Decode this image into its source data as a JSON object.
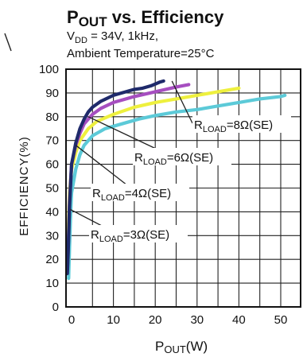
{
  "chart_data": {
    "type": "line",
    "title": {
      "main": "P",
      "sub": "OUT",
      "rest": " vs. Efficiency"
    },
    "subtitle": {
      "line1_v": "V",
      "line1_sub": "DD",
      "line1_rest": " = 34V, 1kHz,",
      "line2": "Ambient Temperature=25°C"
    },
    "xlabel": {
      "main": "P",
      "sub": "OUT",
      "rest": "(W)"
    },
    "ylabel": "EFFICIENCY(%)",
    "xlim": [
      0,
      55
    ],
    "ylim": [
      0,
      100
    ],
    "xticks": [
      "0",
      "10",
      "20",
      "30",
      "40",
      "50"
    ],
    "yticks": [
      "0",
      "10",
      "20",
      "30",
      "40",
      "50",
      "60",
      "70",
      "80",
      "90",
      "100"
    ],
    "grid": true,
    "series": [
      {
        "name": "RLOAD=8Ω(SE)",
        "color": "#1f2a6b",
        "points": [
          [
            -1,
            14
          ],
          [
            -0.8,
            24
          ],
          [
            -0.5,
            42
          ],
          [
            0,
            60
          ],
          [
            1,
            69
          ],
          [
            2,
            75
          ],
          [
            3,
            79
          ],
          [
            4,
            82
          ],
          [
            5,
            84
          ],
          [
            7,
            86.5
          ],
          [
            10,
            89
          ],
          [
            13,
            90.5
          ],
          [
            15,
            91.5
          ],
          [
            17,
            92
          ],
          [
            19,
            93
          ],
          [
            21,
            94.5
          ],
          [
            22,
            95
          ]
        ]
      },
      {
        "name": "RLOAD=6Ω(SE)",
        "color": "#a64ec0",
        "points": [
          [
            -1,
            15
          ],
          [
            -0.8,
            25
          ],
          [
            -0.5,
            44
          ],
          [
            0,
            60
          ],
          [
            1,
            68
          ],
          [
            2,
            73
          ],
          [
            3,
            77
          ],
          [
            5,
            81
          ],
          [
            7,
            83.5
          ],
          [
            10,
            86
          ],
          [
            15,
            88.5
          ],
          [
            20,
            90.5
          ],
          [
            25,
            92.5
          ],
          [
            28,
            93.5
          ]
        ]
      },
      {
        "name": "RLOAD=4Ω(SE)",
        "color": "#eef03e",
        "points": [
          [
            -1,
            22
          ],
          [
            -0.8,
            32
          ],
          [
            -0.5,
            48
          ],
          [
            0,
            58
          ],
          [
            1,
            65
          ],
          [
            2,
            70
          ],
          [
            4,
            75
          ],
          [
            6,
            78
          ],
          [
            10,
            81
          ],
          [
            15,
            84
          ],
          [
            20,
            86
          ],
          [
            25,
            87.5
          ],
          [
            30,
            89
          ],
          [
            35,
            90.5
          ],
          [
            40,
            92
          ]
        ]
      },
      {
        "name": "RLOAD=3Ω(SE)",
        "color": "#5ccad8",
        "points": [
          [
            -0.7,
            12
          ],
          [
            -0.5,
            25
          ],
          [
            -0.2,
            40
          ],
          [
            0,
            48
          ],
          [
            1,
            58
          ],
          [
            2,
            64
          ],
          [
            3,
            68
          ],
          [
            5,
            72
          ],
          [
            8,
            75
          ],
          [
            12,
            77
          ],
          [
            16,
            79
          ],
          [
            20,
            80.5
          ],
          [
            25,
            82
          ],
          [
            30,
            83
          ],
          [
            35,
            84.5
          ],
          [
            40,
            86
          ],
          [
            45,
            87.5
          ],
          [
            50,
            88.5
          ],
          [
            51,
            89
          ]
        ]
      }
    ],
    "annotations": [
      {
        "main": "R",
        "sub": "LOAD",
        "rest": "=8Ω(SE)"
      },
      {
        "main": "R",
        "sub": "LOAD",
        "rest": "=6Ω(SE)"
      },
      {
        "main": "R",
        "sub": "LOAD",
        "rest": "=4Ω(SE)"
      },
      {
        "main": "R",
        "sub": "LOAD",
        "rest": "=3Ω(SE)"
      }
    ]
  }
}
